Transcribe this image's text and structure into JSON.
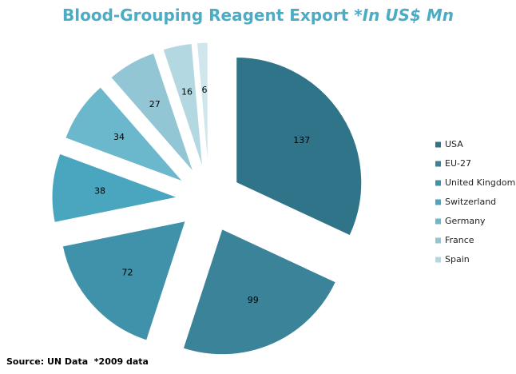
{
  "chart_data": {
    "type": "pie",
    "title": "Blood-Grouping Reagent Export",
    "title_unit": "*In US$ Mn",
    "source": "Source: UN Data  *2009 data",
    "categories": [
      "USA",
      "EU-27",
      "United Kingdom",
      "Switzerland",
      "Germany",
      "France",
      "Spain",
      null
    ],
    "values": [
      137,
      99,
      72,
      38,
      34,
      27,
      16,
      6
    ],
    "colors": [
      "#30748a",
      "#3a8399",
      "#3f92a9",
      "#4aa6be",
      "#6bb8cc",
      "#92c6d5",
      "#b4d8e2",
      "#cfe6ec"
    ],
    "legend": "right"
  }
}
